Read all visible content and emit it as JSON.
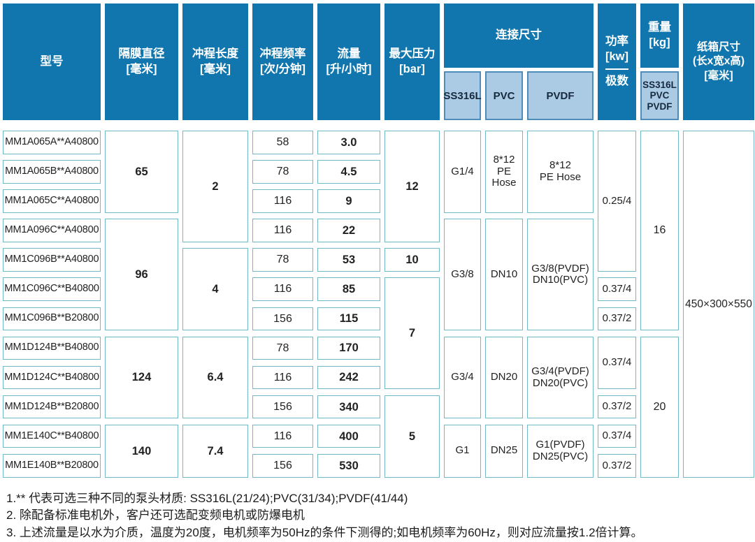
{
  "colors": {
    "header_blue": "#1076ad",
    "subheader_bg": "#abcbe4",
    "subheader_border": "#4e8cba",
    "subheader_text": "#16293e",
    "cell_border": "#70b9c7",
    "cell_text": "#222222"
  },
  "header": {
    "model": "型号",
    "diaphragm": "隔膜直径\n[毫米]",
    "stroke_length": "冲程长度\n[毫米]",
    "stroke_frequency": "冲程频率\n[次/分钟]",
    "flow": "流量\n[升/小时]",
    "max_pressure": "最大压力\n[bar]",
    "connection": "连接尺寸",
    "conn_ss316l": "SS316L",
    "conn_pvc": "PVC",
    "conn_pvdf": "PVDF",
    "power_top": "功率\n[kw]",
    "power_bottom": "极数",
    "weight": "重量\n[kg]",
    "weight_materials": "SS316L\nPVC\nPVDF",
    "carton": "纸箱尺寸\n(长x宽x高)\n[毫米]"
  },
  "table": {
    "column_keys": [
      "model",
      "diaphragm-mm",
      "stroke-length-mm",
      "stroke-frequency",
      "flow-rate",
      "max-pressure",
      "conn-ss316l",
      "conn-pvc",
      "conn-pvdf",
      "power-kw-poles",
      "weight-kg",
      "carton-size"
    ],
    "cells": [
      {
        "col": 1,
        "row": 1,
        "span": 1,
        "style": "model",
        "text": "MM1A065A**A40800"
      },
      {
        "col": 1,
        "row": 2,
        "span": 1,
        "style": "model",
        "text": "MM1A065B**A40800"
      },
      {
        "col": 1,
        "row": 3,
        "span": 1,
        "style": "model",
        "text": "MM1A065C**A40800"
      },
      {
        "col": 1,
        "row": 4,
        "span": 1,
        "style": "model",
        "text": "MM1A096C**A40800"
      },
      {
        "col": 1,
        "row": 5,
        "span": 1,
        "style": "model",
        "text": "MM1C096B**A40800"
      },
      {
        "col": 1,
        "row": 6,
        "span": 1,
        "style": "model",
        "text": "MM1C096C**B40800"
      },
      {
        "col": 1,
        "row": 7,
        "span": 1,
        "style": "model",
        "text": "MM1C096B**B20800"
      },
      {
        "col": 1,
        "row": 8,
        "span": 1,
        "style": "model",
        "text": "MM1D124B**B40800"
      },
      {
        "col": 1,
        "row": 9,
        "span": 1,
        "style": "model",
        "text": "MM1D124C**B40800"
      },
      {
        "col": 1,
        "row": 10,
        "span": 1,
        "style": "model",
        "text": "MM1D124B**B20800"
      },
      {
        "col": 1,
        "row": 11,
        "span": 1,
        "style": "model",
        "text": "MM1E140C**B40800"
      },
      {
        "col": 1,
        "row": 12,
        "span": 1,
        "style": "model",
        "text": "MM1E140B**B20800"
      },
      {
        "col": 2,
        "row": 1,
        "span": 3,
        "style": "num-bold",
        "text": "65"
      },
      {
        "col": 2,
        "row": 4,
        "span": 4,
        "style": "num-bold",
        "text": "96"
      },
      {
        "col": 2,
        "row": 8,
        "span": 3,
        "style": "num-bold",
        "text": "124"
      },
      {
        "col": 2,
        "row": 11,
        "span": 2,
        "style": "num-bold",
        "text": "140"
      },
      {
        "col": 3,
        "row": 1,
        "span": 4,
        "style": "num-bold",
        "text": "2"
      },
      {
        "col": 3,
        "row": 5,
        "span": 3,
        "style": "num-bold",
        "text": "4"
      },
      {
        "col": 3,
        "row": 8,
        "span": 3,
        "style": "num-bold",
        "text": "6.4"
      },
      {
        "col": 3,
        "row": 11,
        "span": 2,
        "style": "num-bold",
        "text": "7.4"
      },
      {
        "col": 4,
        "row": 1,
        "span": 1,
        "style": "num",
        "text": "58"
      },
      {
        "col": 4,
        "row": 2,
        "span": 1,
        "style": "num",
        "text": "78"
      },
      {
        "col": 4,
        "row": 3,
        "span": 1,
        "style": "num",
        "text": "116"
      },
      {
        "col": 4,
        "row": 4,
        "span": 1,
        "style": "num",
        "text": "116"
      },
      {
        "col": 4,
        "row": 5,
        "span": 1,
        "style": "num",
        "text": "78"
      },
      {
        "col": 4,
        "row": 6,
        "span": 1,
        "style": "num",
        "text": "116"
      },
      {
        "col": 4,
        "row": 7,
        "span": 1,
        "style": "num",
        "text": "156"
      },
      {
        "col": 4,
        "row": 8,
        "span": 1,
        "style": "num",
        "text": "78"
      },
      {
        "col": 4,
        "row": 9,
        "span": 1,
        "style": "num",
        "text": "116"
      },
      {
        "col": 4,
        "row": 10,
        "span": 1,
        "style": "num",
        "text": "156"
      },
      {
        "col": 4,
        "row": 11,
        "span": 1,
        "style": "num",
        "text": "116"
      },
      {
        "col": 4,
        "row": 12,
        "span": 1,
        "style": "num",
        "text": "156"
      },
      {
        "col": 5,
        "row": 1,
        "span": 1,
        "style": "num-bold",
        "text": "3.0"
      },
      {
        "col": 5,
        "row": 2,
        "span": 1,
        "style": "num-bold",
        "text": "4.5"
      },
      {
        "col": 5,
        "row": 3,
        "span": 1,
        "style": "num-bold",
        "text": "9"
      },
      {
        "col": 5,
        "row": 4,
        "span": 1,
        "style": "num-bold",
        "text": "22"
      },
      {
        "col": 5,
        "row": 5,
        "span": 1,
        "style": "num-bold",
        "text": "53"
      },
      {
        "col": 5,
        "row": 6,
        "span": 1,
        "style": "num-bold",
        "text": "85"
      },
      {
        "col": 5,
        "row": 7,
        "span": 1,
        "style": "num-bold",
        "text": "115"
      },
      {
        "col": 5,
        "row": 8,
        "span": 1,
        "style": "num-bold",
        "text": "170"
      },
      {
        "col": 5,
        "row": 9,
        "span": 1,
        "style": "num-bold",
        "text": "242"
      },
      {
        "col": 5,
        "row": 10,
        "span": 1,
        "style": "num-bold",
        "text": "340"
      },
      {
        "col": 5,
        "row": 11,
        "span": 1,
        "style": "num-bold",
        "text": "400"
      },
      {
        "col": 5,
        "row": 12,
        "span": 1,
        "style": "num-bold",
        "text": "530"
      },
      {
        "col": 6,
        "row": 1,
        "span": 4,
        "style": "num-bold",
        "text": "12"
      },
      {
        "col": 6,
        "row": 5,
        "span": 1,
        "style": "num-bold",
        "text": "10"
      },
      {
        "col": 6,
        "row": 6,
        "span": 4,
        "style": "num-bold",
        "text": "7"
      },
      {
        "col": 6,
        "row": 10,
        "span": 3,
        "style": "num-bold",
        "text": "5"
      },
      {
        "col": 7,
        "row": 1,
        "span": 3,
        "style": "conn",
        "text": "G1/4"
      },
      {
        "col": 7,
        "row": 4,
        "span": 4,
        "style": "conn",
        "text": "G3/8"
      },
      {
        "col": 7,
        "row": 8,
        "span": 3,
        "style": "conn",
        "text": "G3/4"
      },
      {
        "col": 7,
        "row": 11,
        "span": 2,
        "style": "conn",
        "text": "G1"
      },
      {
        "col": 8,
        "row": 1,
        "span": 3,
        "style": "conn",
        "text": "8*12\nPE\nHose"
      },
      {
        "col": 8,
        "row": 4,
        "span": 4,
        "style": "conn",
        "text": "DN10"
      },
      {
        "col": 8,
        "row": 8,
        "span": 3,
        "style": "conn",
        "text": "DN20"
      },
      {
        "col": 8,
        "row": 11,
        "span": 2,
        "style": "conn",
        "text": "DN25"
      },
      {
        "col": 9,
        "row": 1,
        "span": 3,
        "style": "conn",
        "text": "8*12\nPE Hose"
      },
      {
        "col": 9,
        "row": 4,
        "span": 4,
        "style": "conn",
        "text": "G3/8(PVDF)\nDN10(PVC)"
      },
      {
        "col": 9,
        "row": 8,
        "span": 3,
        "style": "conn",
        "text": "G3/4(PVDF)\nDN20(PVC)"
      },
      {
        "col": 9,
        "row": 11,
        "span": 2,
        "style": "conn",
        "text": "G1(PVDF)\nDN25(PVC)"
      },
      {
        "col": 10,
        "row": 1,
        "span": 5,
        "style": "conn",
        "text": "0.25/4"
      },
      {
        "col": 10,
        "row": 6,
        "span": 1,
        "style": "conn",
        "text": "0.37/4"
      },
      {
        "col": 10,
        "row": 7,
        "span": 1,
        "style": "conn",
        "text": "0.37/2"
      },
      {
        "col": 10,
        "row": 8,
        "span": 2,
        "style": "conn",
        "text": "0.37/4"
      },
      {
        "col": 10,
        "row": 10,
        "span": 1,
        "style": "conn",
        "text": "0.37/2"
      },
      {
        "col": 10,
        "row": 11,
        "span": 1,
        "style": "conn",
        "text": "0.37/4"
      },
      {
        "col": 10,
        "row": 12,
        "span": 1,
        "style": "conn",
        "text": "0.37/2"
      },
      {
        "col": 11,
        "row": 1,
        "span": 7,
        "style": "num",
        "text": "16"
      },
      {
        "col": 11,
        "row": 8,
        "span": 5,
        "style": "num",
        "text": "20"
      },
      {
        "col": 12,
        "row": 1,
        "span": 12,
        "style": "carton",
        "text": "450×300×550"
      }
    ]
  },
  "notes": [
    "1.** 代表可选三种不同的泵头材质: SS316L(21/24);PVC(31/34);PVDF(41/44)",
    "2. 除配备标准电机外，客户还可选配变频电机或防爆电机",
    "3. 上述流量是以水为介质，温度为20度，电机频率为50Hz的条件下测得的;如电机频率为60Hz，则对应流量按1.2倍计算。"
  ]
}
